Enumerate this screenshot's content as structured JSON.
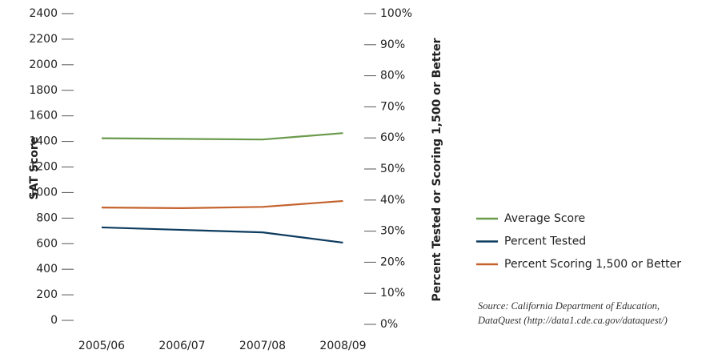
{
  "chart_data": {
    "type": "line",
    "y_label": "SAT Score",
    "y2_label": "Percent Tested or Scoring 1,500 or Better",
    "categories": [
      "2005/06",
      "2006/07",
      "2007/08",
      "2008/09"
    ],
    "series": [
      {
        "name": "Average Score",
        "color": "#6a9a4c",
        "values": [
          1425,
          1420,
          1415,
          1465
        ]
      },
      {
        "name": "Percent Tested",
        "color": "#0d3b5e",
        "axis": "y2",
        "values": [
          31.2,
          30.4,
          29.6,
          26.3
        ]
      },
      {
        "name": "Percent Scoring 1,500 or Better",
        "color": "#c4622d",
        "axis": "y2",
        "values": [
          37.6,
          37.4,
          37.8,
          39.7
        ]
      }
    ],
    "ylim": [
      0,
      2400
    ],
    "yticks": [
      0,
      200,
      400,
      600,
      800,
      1000,
      1200,
      1400,
      1600,
      1800,
      2000,
      2200,
      2400
    ],
    "y2lim": [
      0,
      100
    ],
    "y2ticks": [
      {
        "value": 0,
        "label": "0%"
      },
      {
        "value": 10,
        "label": "10%"
      },
      {
        "value": 20,
        "label": "20%"
      },
      {
        "value": 30,
        "label": "30%"
      },
      {
        "value": 40,
        "label": "40%"
      },
      {
        "value": 50,
        "label": "50%"
      },
      {
        "value": 60,
        "label": "60%"
      },
      {
        "value": 70,
        "label": "70%"
      },
      {
        "value": 80,
        "label": "80%"
      },
      {
        "value": 90,
        "label": "90%"
      },
      {
        "value": 100,
        "label": "100%"
      }
    ],
    "legend": "right",
    "annotations": [
      "Source: California Department of Education,",
      "DataQuest (http://data1.cde.ca.gov/dataquest/)"
    ]
  }
}
